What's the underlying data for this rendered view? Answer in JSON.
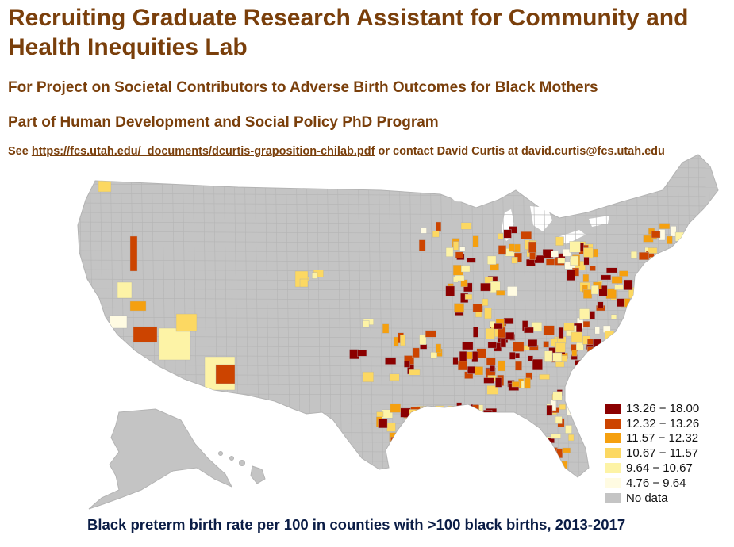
{
  "header": {
    "title": "Recruiting Graduate Research Assistant for Community and Health Inequities Lab",
    "subtitle_project": "For Project on Societal Contributors to Adverse Birth Outcomes for Black Mothers",
    "subtitle_program": "Part of Human Development and Social Policy PhD Program",
    "contact_prefix": "See ",
    "contact_link": "https://fcs.utah.edu/_documents/dcurtis-graposition-chilab.pdf",
    "contact_suffix": " or contact David Curtis at david.curtis@fcs.utah.edu"
  },
  "map": {
    "region": "Contiguous United States, Alaska and Hawaii (county-level choropleth)",
    "caption": "Black preterm birth rate per 100 in counties with >100 black births, 2013-2017",
    "legend": [
      {
        "label": "13.26 − 18.00",
        "color": "#8b0000"
      },
      {
        "label": "12.32 − 13.26",
        "color": "#cc4400"
      },
      {
        "label": "11.57 − 12.32",
        "color": "#f5a00f"
      },
      {
        "label": "10.67 − 11.57",
        "color": "#fcd862"
      },
      {
        "label": "9.64 − 10.67",
        "color": "#fdf3a6"
      },
      {
        "label": "4.76 − 9.64",
        "color": "#fffbe2"
      },
      {
        "label": "No data",
        "color": "#c4c4c4"
      }
    ],
    "base_color": "#c4c4c4",
    "border_color": "#b3b3b3"
  }
}
